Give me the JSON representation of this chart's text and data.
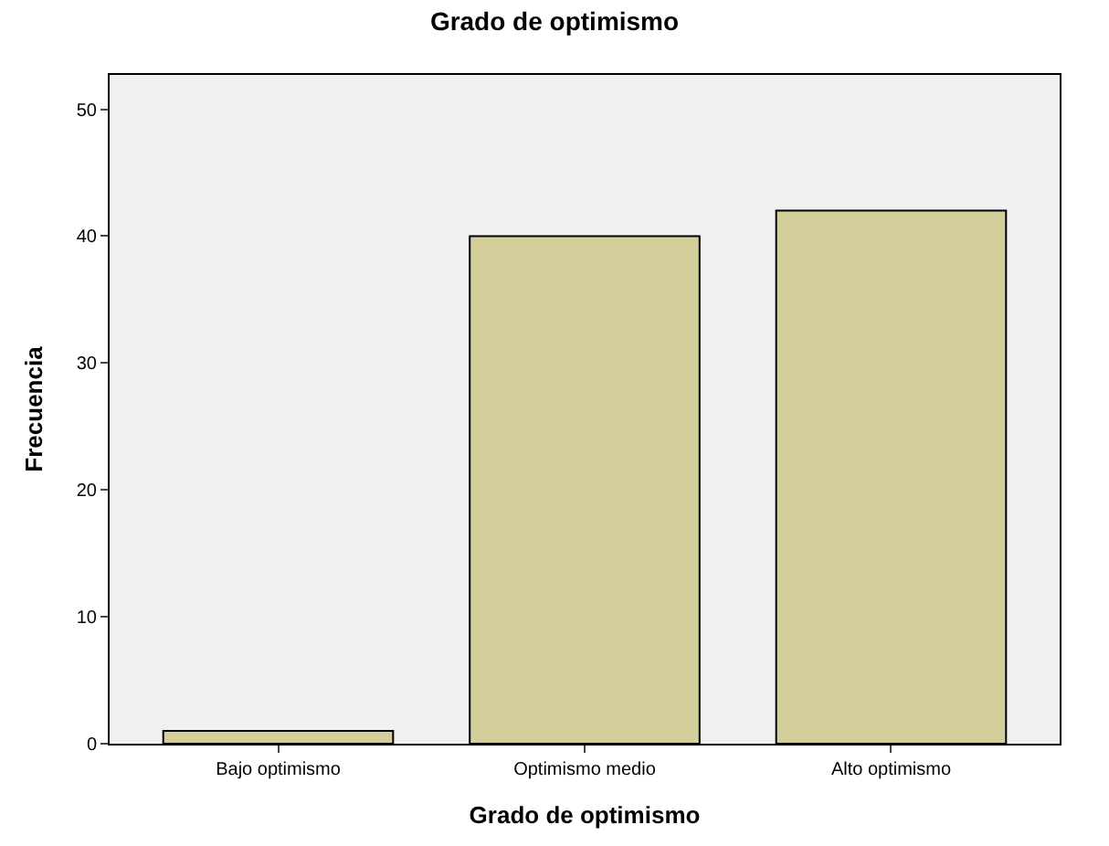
{
  "chart_data": {
    "type": "bar",
    "title": "Grado de optimismo",
    "xlabel": "Grado de optimismo",
    "ylabel": "Frecuencia",
    "categories": [
      "Bajo optimismo",
      "Optimismo medio",
      "Alto optimismo"
    ],
    "values": [
      1,
      40,
      42
    ],
    "color": "#d4cf9a",
    "ylim": [
      0,
      52.7
    ],
    "yticks": [
      0,
      10,
      20,
      30,
      40,
      50
    ],
    "grid": false,
    "legend": false
  }
}
